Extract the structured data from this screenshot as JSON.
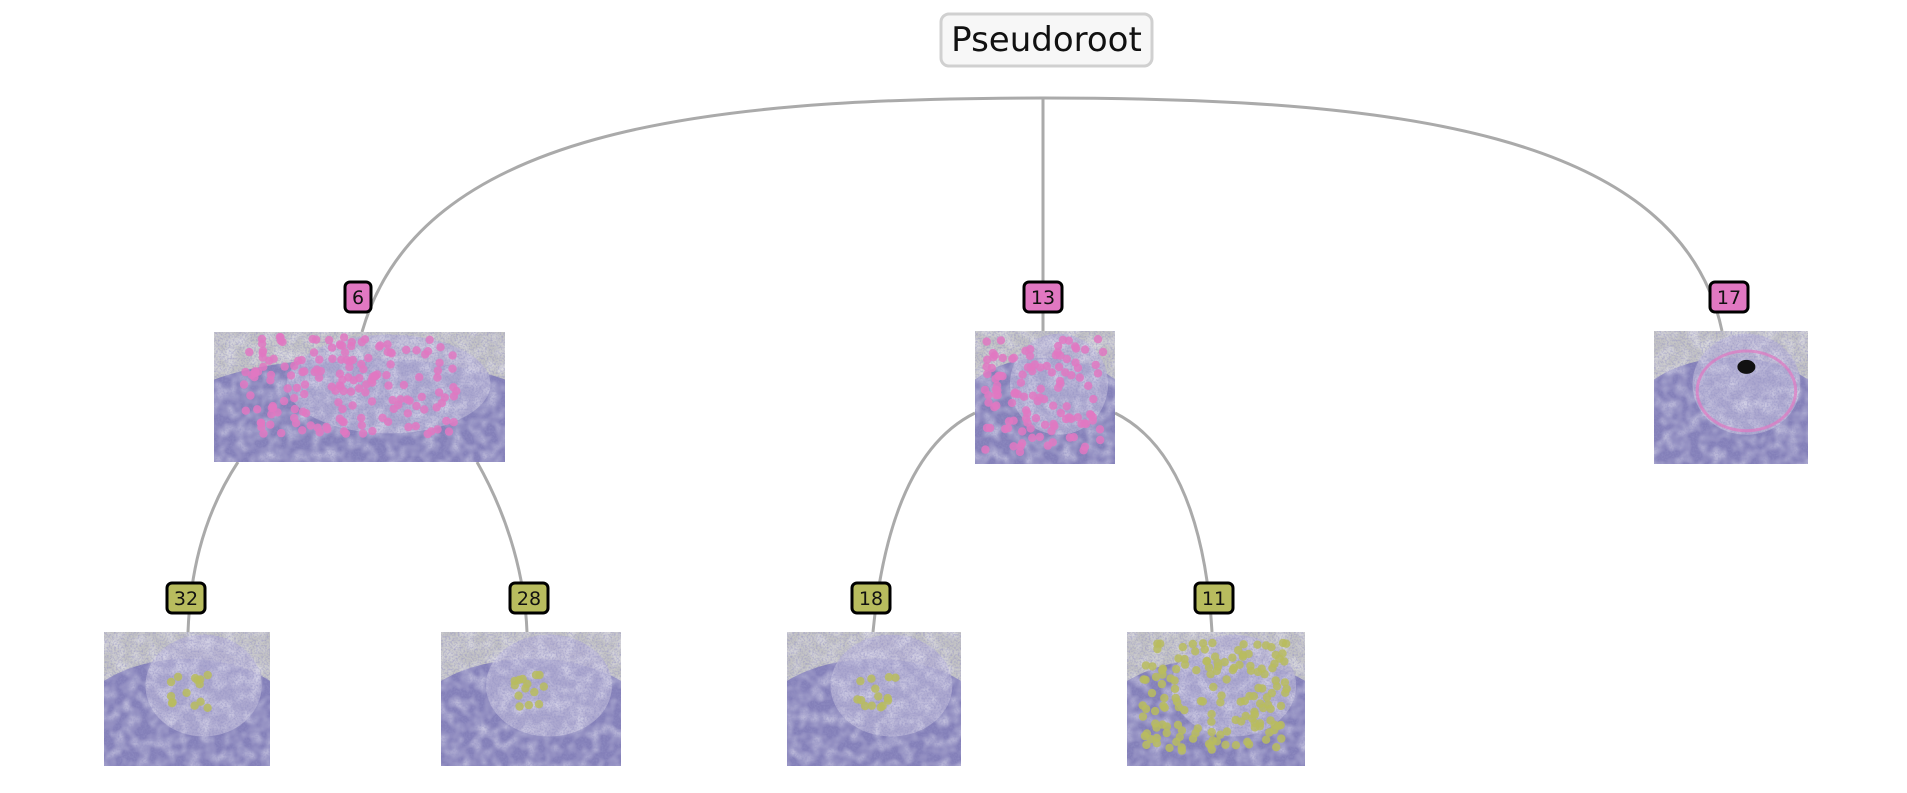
{
  "root": {
    "label": "Pseudoroot"
  },
  "nodes": [
    {
      "id": "6",
      "label": "6",
      "parent": "root",
      "level": 1
    },
    {
      "id": "13",
      "label": "13",
      "parent": "root",
      "level": 1
    },
    {
      "id": "17",
      "label": "17",
      "parent": "root",
      "level": 1
    },
    {
      "id": "32",
      "label": "32",
      "parent": "6",
      "level": 2
    },
    {
      "id": "28",
      "label": "28",
      "parent": "6",
      "level": 2
    },
    {
      "id": "18",
      "label": "18",
      "parent": "13",
      "level": 2
    },
    {
      "id": "11",
      "label": "11",
      "parent": "13",
      "level": 2
    }
  ],
  "colors": {
    "edge": "#aaaaaa",
    "root_fill": "#f7f7f7",
    "root_border": "#d0d0d0",
    "level1_badge": "#e178c2",
    "level2_badge": "#b8bc5e",
    "badge_border": "#000000",
    "tissue_bg": "#c4c4c4",
    "tissue_main": "#7d79b8",
    "tissue_light": "#b7b2d4",
    "tissue_dark": "#4c4a8c"
  }
}
